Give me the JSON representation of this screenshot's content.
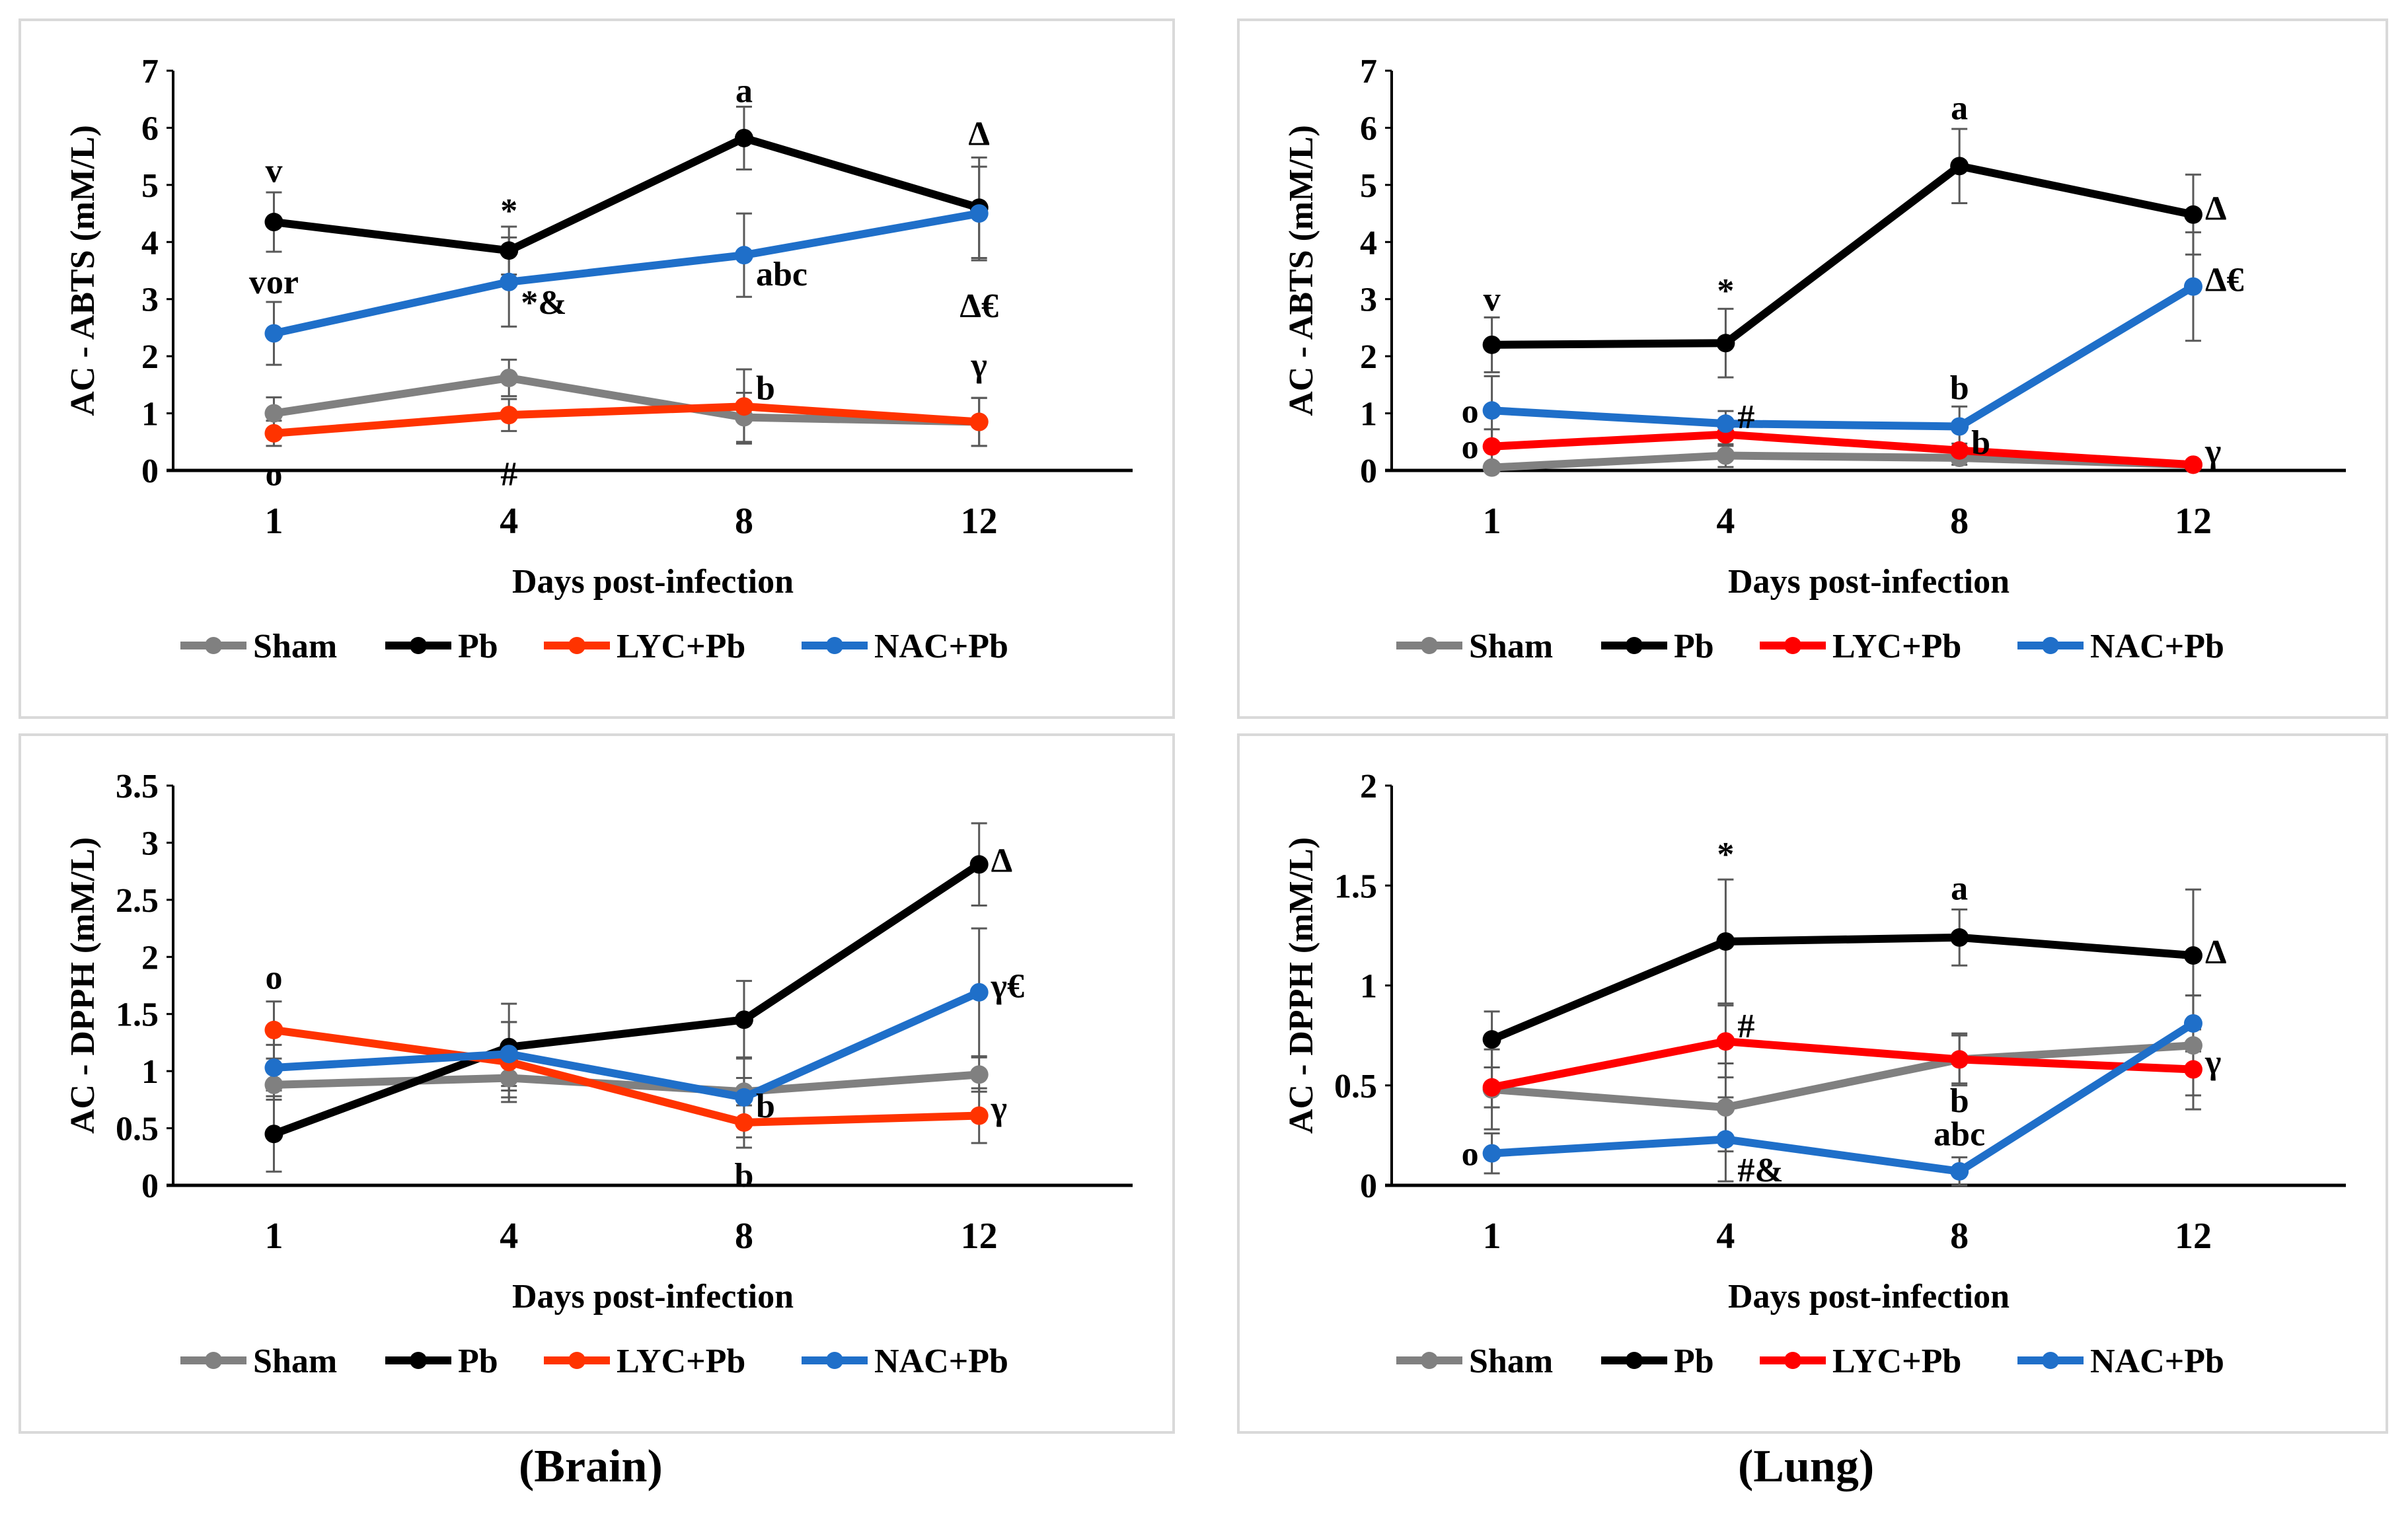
{
  "captions": {
    "brain": "(Brain)",
    "lung": "(Lung)"
  },
  "legend": [
    "Sham",
    "Pb",
    "LYC+Pb",
    "NAC+Pb"
  ],
  "chart_data": [
    {
      "type": "line",
      "panel": "brain-abts",
      "title": "",
      "xlabel": "Days post-infection",
      "ylabel": "AC - ABTS (mM/L)",
      "categories": [
        "1",
        "4",
        "8",
        "12"
      ],
      "ylim": [
        0,
        7
      ],
      "yticks": [
        "0",
        "1",
        "2",
        "3",
        "4",
        "5",
        "6",
        "7"
      ],
      "grid": false,
      "legend_position": "bottom",
      "series": [
        {
          "name": "Sham",
          "color": "#808080",
          "values": [
            1.0,
            1.62,
            0.93,
            0.85
          ],
          "errors": [
            0.28,
            0.32,
            0.43,
            0.42
          ]
        },
        {
          "name": "Pb",
          "color": "#000000",
          "values": [
            4.35,
            3.85,
            5.82,
            4.6
          ],
          "errors": [
            0.52,
            0.42,
            0.55,
            0.88
          ]
        },
        {
          "name": "LYC+Pb",
          "color": "#FF3300",
          "values": [
            0.65,
            0.97,
            1.12,
            0.85
          ],
          "errors": [
            0.22,
            0.28,
            0.65,
            0.42
          ]
        },
        {
          "name": "NAC+Pb",
          "color": "#1F6FC9",
          "values": [
            2.4,
            3.3,
            3.77,
            4.5
          ],
          "errors": [
            0.55,
            0.78,
            0.73,
            0.82
          ]
        }
      ],
      "annotations": [
        {
          "text": "v",
          "x": "1",
          "y": 5.05,
          "pos": "above"
        },
        {
          "text": "vor",
          "x": "1",
          "y": 3.1,
          "pos": "above"
        },
        {
          "text": "o",
          "x": "1",
          "y": 0.2,
          "pos": "below"
        },
        {
          "text": "*",
          "x": "4",
          "y": 4.35,
          "pos": "above"
        },
        {
          "text": "*&",
          "x": "4",
          "y": 2.95,
          "pos": "right"
        },
        {
          "text": "#",
          "x": "4",
          "y": 0.2,
          "pos": "below"
        },
        {
          "text": "a",
          "x": "8",
          "y": 6.45,
          "pos": "above"
        },
        {
          "text": "abc",
          "x": "8",
          "y": 3.45,
          "pos": "right"
        },
        {
          "text": "b",
          "x": "8",
          "y": 1.45,
          "pos": "right"
        },
        {
          "text": "Δ",
          "x": "12",
          "y": 5.7,
          "pos": "above"
        },
        {
          "text": "Δ€",
          "x": "12",
          "y": 3.15,
          "pos": "below"
        },
        {
          "text": "γ",
          "x": "12",
          "y": 1.65,
          "pos": "above"
        }
      ]
    },
    {
      "type": "line",
      "panel": "lung-abts",
      "title": "",
      "xlabel": "Days post-infection",
      "ylabel": "AC - ABTS (mM/L)",
      "categories": [
        "1",
        "4",
        "8",
        "12"
      ],
      "ylim": [
        0,
        7
      ],
      "yticks": [
        "0",
        "1",
        "2",
        "3",
        "4",
        "5",
        "6",
        "7"
      ],
      "grid": false,
      "legend_position": "bottom",
      "series": [
        {
          "name": "Sham",
          "color": "#808080",
          "values": [
            0.05,
            0.26,
            0.22,
            0.1
          ],
          "errors": [
            0.05,
            0.2,
            0.12,
            0.05
          ]
        },
        {
          "name": "Pb",
          "color": "#000000",
          "values": [
            2.2,
            2.23,
            5.33,
            4.48
          ],
          "errors": [
            0.48,
            0.6,
            0.65,
            0.7
          ]
        },
        {
          "name": "LYC+Pb",
          "color": "#FF0000",
          "values": [
            0.42,
            0.63,
            0.35,
            0.1
          ],
          "errors": [
            0.3,
            0.2,
            0.12,
            0.05
          ]
        },
        {
          "name": "NAC+Pb",
          "color": "#1F6FC9",
          "values": [
            1.05,
            0.82,
            0.77,
            3.22
          ],
          "errors": [
            0.6,
            0.22,
            0.35,
            0.95
          ]
        }
      ],
      "annotations": [
        {
          "text": "v",
          "x": "1",
          "y": 2.8,
          "pos": "above"
        },
        {
          "text": "o",
          "x": "1",
          "y": 1.05,
          "pos": "left"
        },
        {
          "text": "o",
          "x": "1",
          "y": 0.42,
          "pos": "left"
        },
        {
          "text": "*",
          "x": "4",
          "y": 2.95,
          "pos": "above"
        },
        {
          "text": "#",
          "x": "4",
          "y": 0.95,
          "pos": "right"
        },
        {
          "text": "a",
          "x": "8",
          "y": 6.15,
          "pos": "above"
        },
        {
          "text": "b",
          "x": "8",
          "y": 1.25,
          "pos": "above"
        },
        {
          "text": "b",
          "x": "8",
          "y": 0.5,
          "pos": "right"
        },
        {
          "text": "Δ",
          "x": "12",
          "y": 4.6,
          "pos": "right"
        },
        {
          "text": "Δ€",
          "x": "12",
          "y": 3.35,
          "pos": "right"
        },
        {
          "text": "γ",
          "x": "12",
          "y": 0.35,
          "pos": "right"
        }
      ]
    },
    {
      "type": "line",
      "panel": "brain-dpph",
      "title": "",
      "xlabel": "Days post-infection",
      "ylabel": "AC - DPPH (mM/L)",
      "categories": [
        "1",
        "4",
        "8",
        "12"
      ],
      "ylim": [
        0,
        3.5
      ],
      "yticks": [
        "0",
        "0.5",
        "1",
        "1.5",
        "2",
        "2.5",
        "3",
        "3.5"
      ],
      "grid": false,
      "legend_position": "bottom",
      "series": [
        {
          "name": "Sham",
          "color": "#808080",
          "values": [
            0.88,
            0.94,
            0.82,
            0.97
          ],
          "errors": [
            0.13,
            0.17,
            0.12,
            0.15
          ]
        },
        {
          "name": "Pb",
          "color": "#000000",
          "values": [
            0.45,
            1.21,
            1.45,
            2.81
          ],
          "errors": [
            0.33,
            0.38,
            0.34,
            0.36
          ]
        },
        {
          "name": "LYC+Pb",
          "color": "#FF3300",
          "values": [
            1.36,
            1.08,
            0.55,
            0.61
          ],
          "errors": [
            0.25,
            0.35,
            0.22,
            0.24
          ]
        },
        {
          "name": "NAC+Pb",
          "color": "#1F6FC9",
          "values": [
            1.03,
            1.15,
            0.77,
            1.69
          ],
          "errors": [
            0.2,
            0.28,
            0.35,
            0.56
          ]
        }
      ],
      "annotations": [
        {
          "text": "o",
          "x": "1",
          "y": 1.72,
          "pos": "above"
        },
        {
          "text": "b",
          "x": "8",
          "y": 0.7,
          "pos": "right"
        },
        {
          "text": "b",
          "x": "8",
          "y": 0.22,
          "pos": "below"
        },
        {
          "text": "Δ",
          "x": "12",
          "y": 2.85,
          "pos": "right"
        },
        {
          "text": "γ€",
          "x": "12",
          "y": 1.75,
          "pos": "right"
        },
        {
          "text": "γ",
          "x": "12",
          "y": 0.68,
          "pos": "right"
        }
      ]
    },
    {
      "type": "line",
      "panel": "lung-dpph",
      "title": "",
      "xlabel": "Days post-infection",
      "ylabel": "AC - DPPH (mM/L)",
      "categories": [
        "1",
        "4",
        "8",
        "12"
      ],
      "ylim": [
        0,
        2
      ],
      "yticks": [
        "0",
        "0.5",
        "1",
        "1.5",
        "2"
      ],
      "grid": false,
      "legend_position": "bottom",
      "series": [
        {
          "name": "Sham",
          "color": "#808080",
          "values": [
            0.48,
            0.39,
            0.63,
            0.7
          ],
          "errors": [
            0.2,
            0.22,
            0.13,
            0.25
          ]
        },
        {
          "name": "Pb",
          "color": "#000000",
          "values": [
            0.73,
            1.22,
            1.24,
            1.15
          ],
          "errors": [
            0.14,
            0.31,
            0.14,
            0.33
          ]
        },
        {
          "name": "LYC+Pb",
          "color": "#FF0000",
          "values": [
            0.49,
            0.72,
            0.63,
            0.58
          ],
          "errors": [
            0.1,
            0.18,
            0.12,
            0.2
          ]
        },
        {
          "name": "NAC+Pb",
          "color": "#1F6FC9",
          "values": [
            0.16,
            0.23,
            0.07,
            0.81
          ],
          "errors": [
            0.1,
            0.21,
            0.07,
            0.14
          ]
        }
      ],
      "annotations": [
        {
          "text": "*",
          "x": "4",
          "y": 1.6,
          "pos": "above"
        },
        {
          "text": "#",
          "x": "4",
          "y": 0.8,
          "pos": "right"
        },
        {
          "text": "#&",
          "x": "4",
          "y": 0.08,
          "pos": "right"
        },
        {
          "text": "o",
          "x": "1",
          "y": 0.16,
          "pos": "left"
        },
        {
          "text": "a",
          "x": "8",
          "y": 1.43,
          "pos": "above"
        },
        {
          "text": "b",
          "x": "8",
          "y": 0.5,
          "pos": "below"
        },
        {
          "text": "abc",
          "x": "8",
          "y": 0.2,
          "pos": "above"
        },
        {
          "text": "Δ",
          "x": "12",
          "y": 1.17,
          "pos": "right"
        },
        {
          "text": "γ",
          "x": "12",
          "y": 0.62,
          "pos": "right"
        }
      ]
    }
  ]
}
